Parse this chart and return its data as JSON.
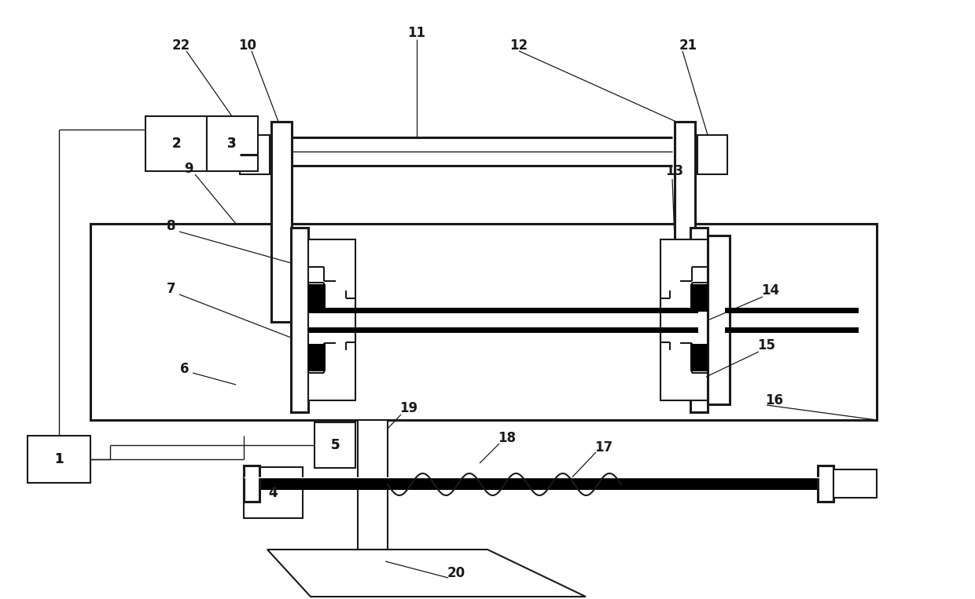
{
  "bg_color": "#ffffff",
  "lc": "#1a1a1a",
  "lw_vthick": 3.5,
  "lw_thick": 2.2,
  "lw_med": 1.5,
  "lw_thin": 1.0,
  "lw_label": 0.9,
  "font_size": 12
}
